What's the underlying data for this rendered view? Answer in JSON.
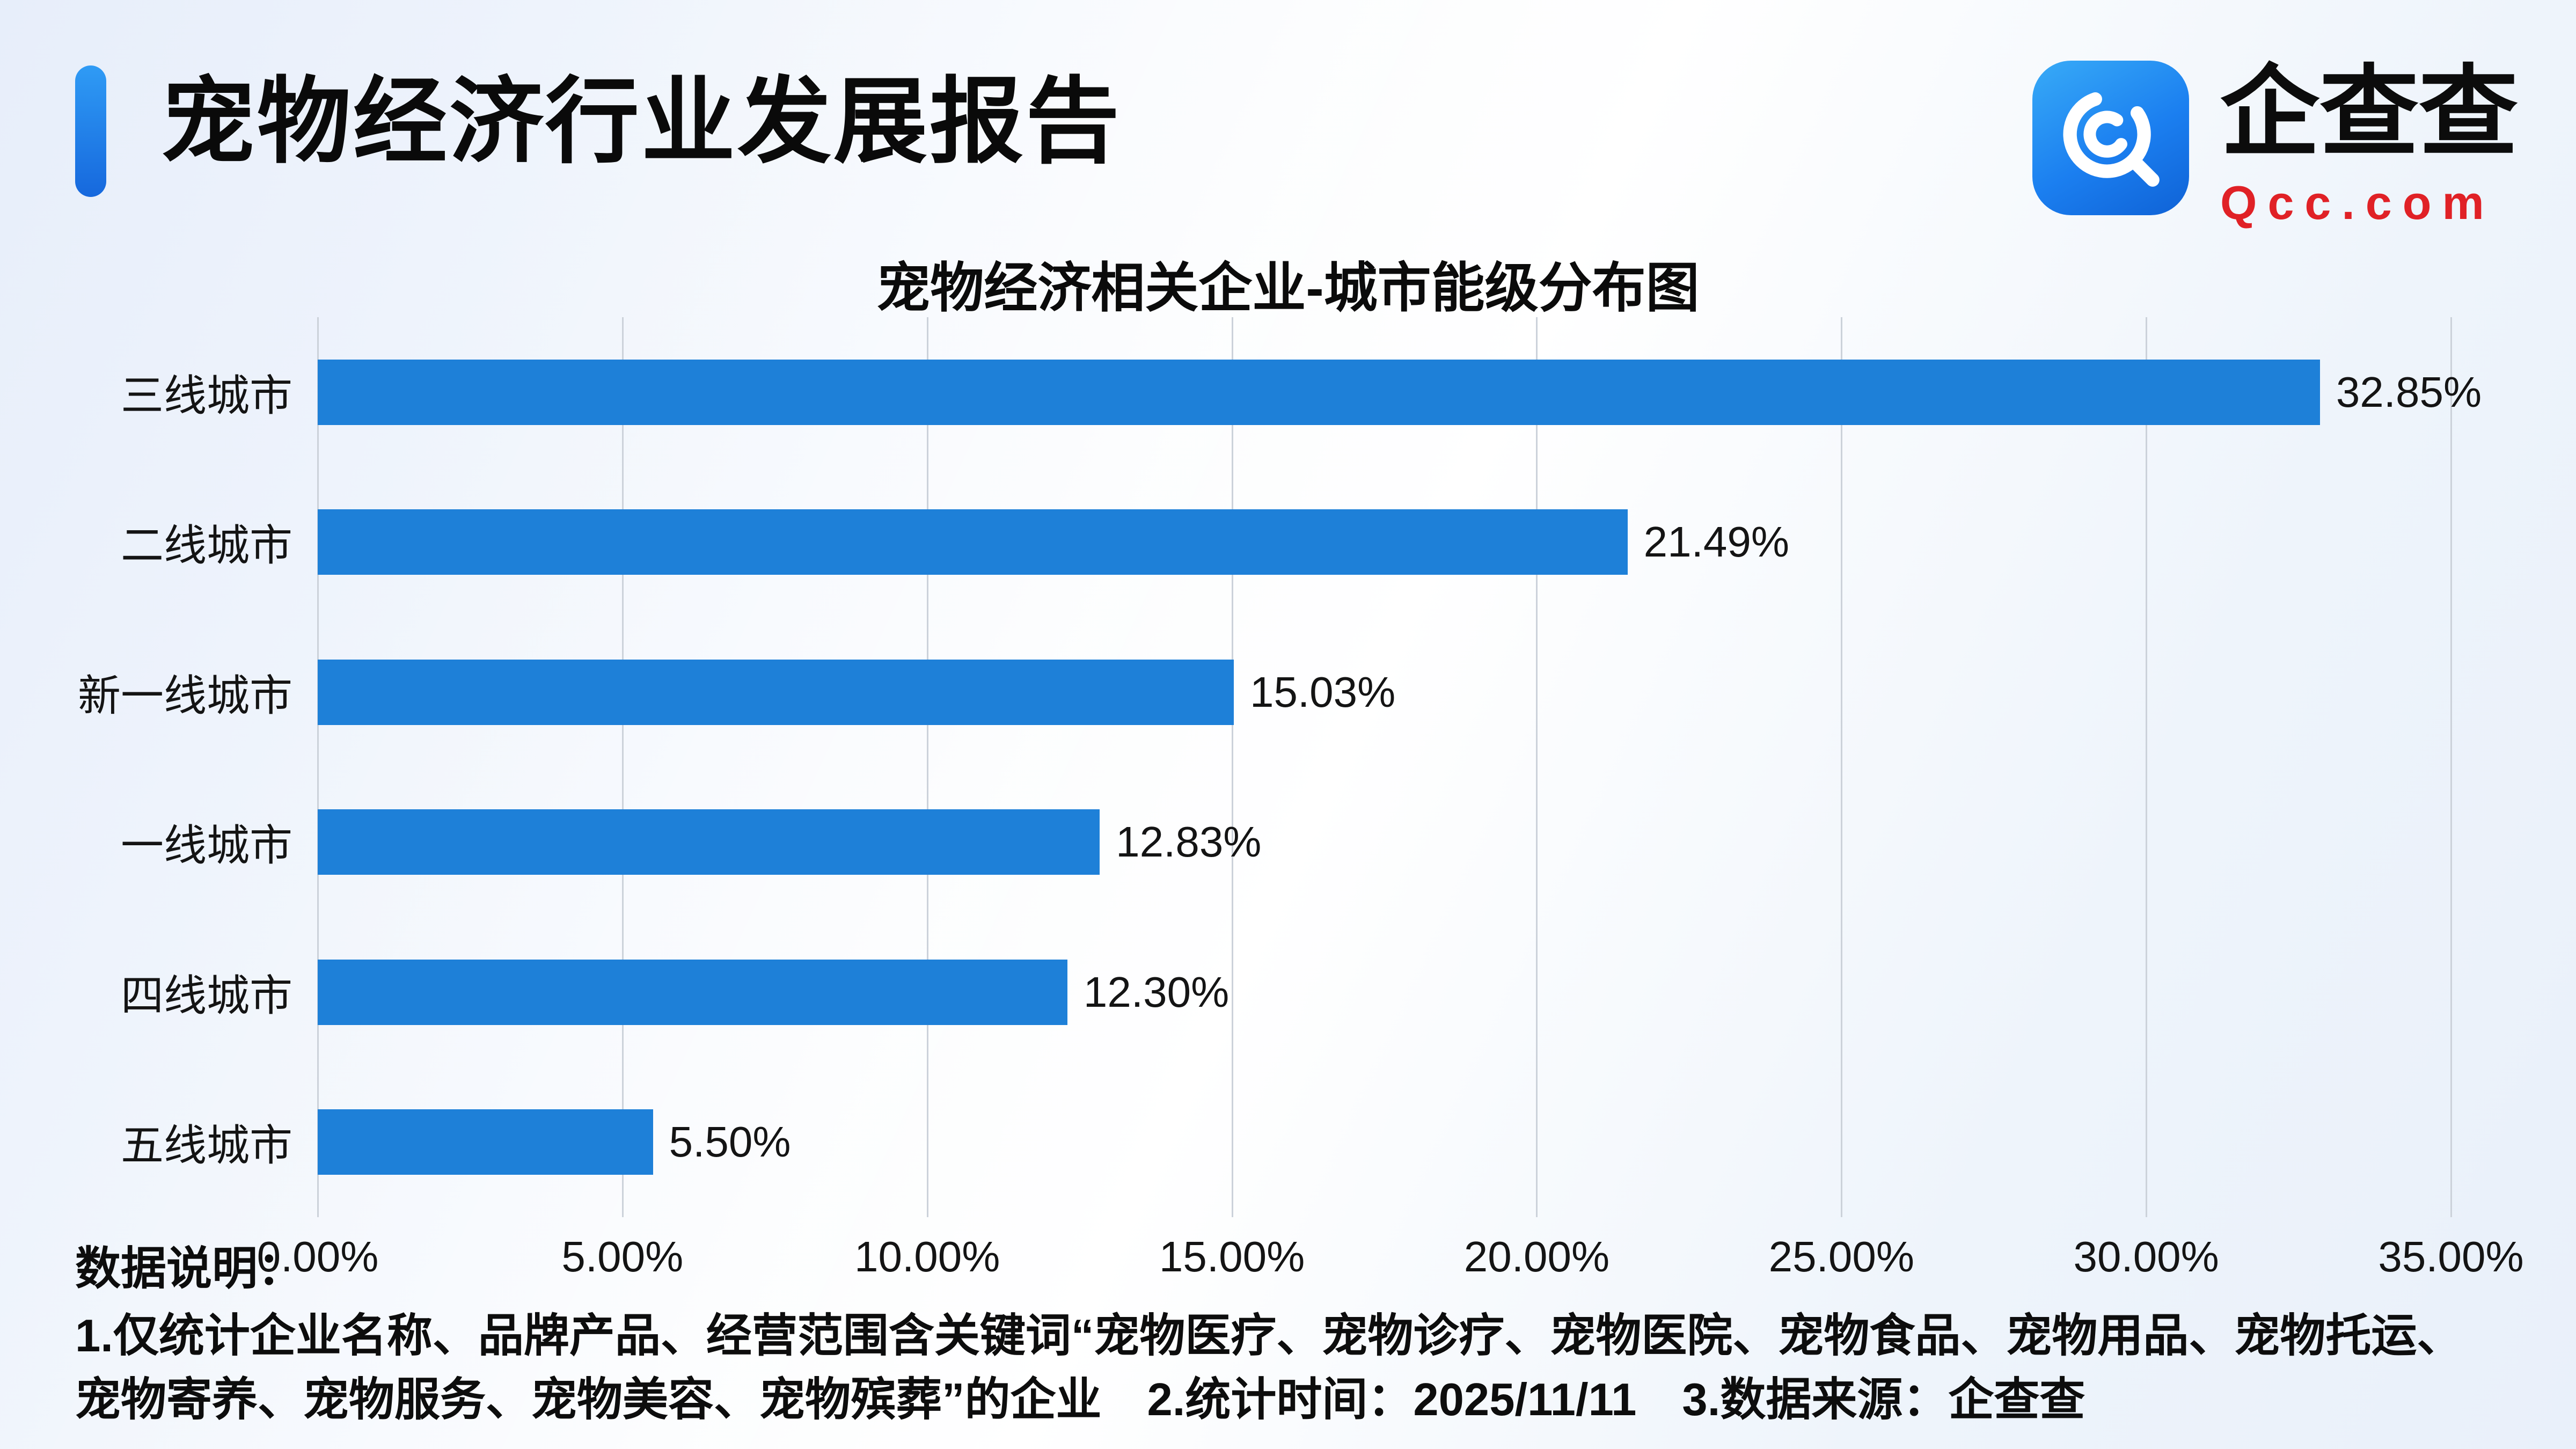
{
  "header": {
    "title": "宠物经济行业发展报告",
    "logo": {
      "icon": "qcc-spiral-magnifier-icon",
      "brand": "企查查",
      "domain": "Qcc.com",
      "icon_color": "#1b7ff0",
      "domain_color": "#e02126"
    }
  },
  "chart_data": {
    "type": "bar",
    "orientation": "horizontal",
    "title": "宠物经济相关企业-城市能级分布图",
    "categories": [
      "三线城市",
      "二线城市",
      "新一线城市",
      "一线城市",
      "四线城市",
      "五线城市"
    ],
    "values": [
      32.85,
      21.49,
      15.03,
      12.83,
      12.3,
      5.5
    ],
    "value_labels": [
      "32.85%",
      "21.49%",
      "15.03%",
      "12.83%",
      "12.30%",
      "5.50%"
    ],
    "x_ticks": [
      "0.00%",
      "5.00%",
      "10.00%",
      "15.00%",
      "20.00%",
      "25.00%",
      "30.00%",
      "35.00%"
    ],
    "xlim": [
      0,
      35
    ],
    "bar_color": "#1e80d8",
    "grid": true,
    "legend": "none"
  },
  "footer": {
    "label": "数据说明：",
    "notes": "1.仅统计企业名称、品牌产品、经营范围含关键词“宠物医疗、宠物诊疗、宠物医院、宠物食品、宠物用品、宠物托运、宠物寄养、宠物服务、宠物美容、宠物殡葬”的企业　2.统计时间：2025/11/11　3.数据来源：企查查"
  }
}
